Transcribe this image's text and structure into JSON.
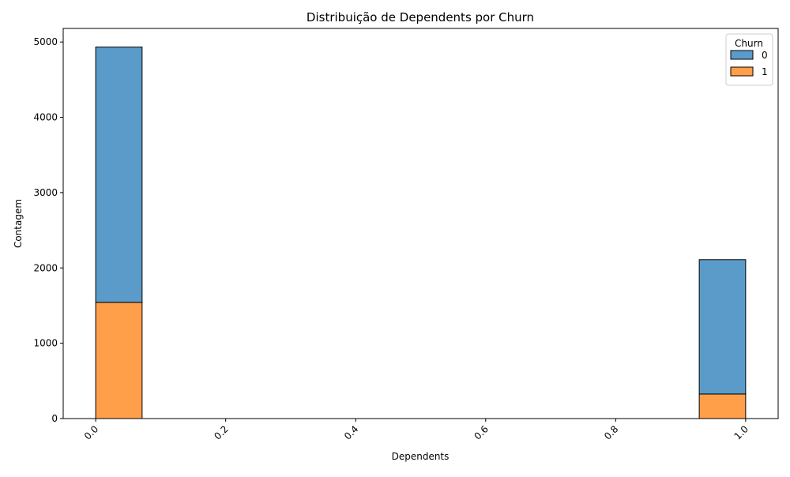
{
  "chart_data": {
    "type": "bar",
    "subtype": "stacked-histogram",
    "title": "Distribuição de Dependents por Churn",
    "xlabel": "Dependents",
    "ylabel": "Contagem",
    "xlim": [
      -0.05,
      1.05
    ],
    "ylim": [
      0,
      5180
    ],
    "x_ticks": [
      0.0,
      0.2,
      0.4,
      0.6,
      0.8,
      1.0
    ],
    "x_tick_labels": [
      "0.0",
      "0.2",
      "0.4",
      "0.6",
      "0.8",
      "1.0"
    ],
    "y_ticks": [
      0,
      1000,
      2000,
      3000,
      4000,
      5000
    ],
    "y_tick_labels": [
      "0",
      "1000",
      "2000",
      "3000",
      "4000",
      "5000"
    ],
    "bin_edges": [
      0.0,
      0.0714,
      0.1429,
      0.2143,
      0.2857,
      0.3571,
      0.4286,
      0.5,
      0.5714,
      0.6429,
      0.7143,
      0.7857,
      0.8571,
      0.9286,
      1.0
    ],
    "legend_title": "Churn",
    "legend_position": "top-right",
    "grid": false,
    "series": [
      {
        "name": "1",
        "color": "#ff9f4a",
        "values": [
          1543,
          0,
          0,
          0,
          0,
          0,
          0,
          0,
          0,
          0,
          0,
          0,
          0,
          326
        ]
      },
      {
        "name": "0",
        "color": "#5b9bc9",
        "values": [
          3390,
          0,
          0,
          0,
          0,
          0,
          0,
          0,
          0,
          0,
          0,
          0,
          0,
          1784
        ]
      }
    ],
    "legend_entries": [
      {
        "label": "0",
        "color": "#5b9bc9"
      },
      {
        "label": "1",
        "color": "#ff9f4a"
      }
    ]
  }
}
